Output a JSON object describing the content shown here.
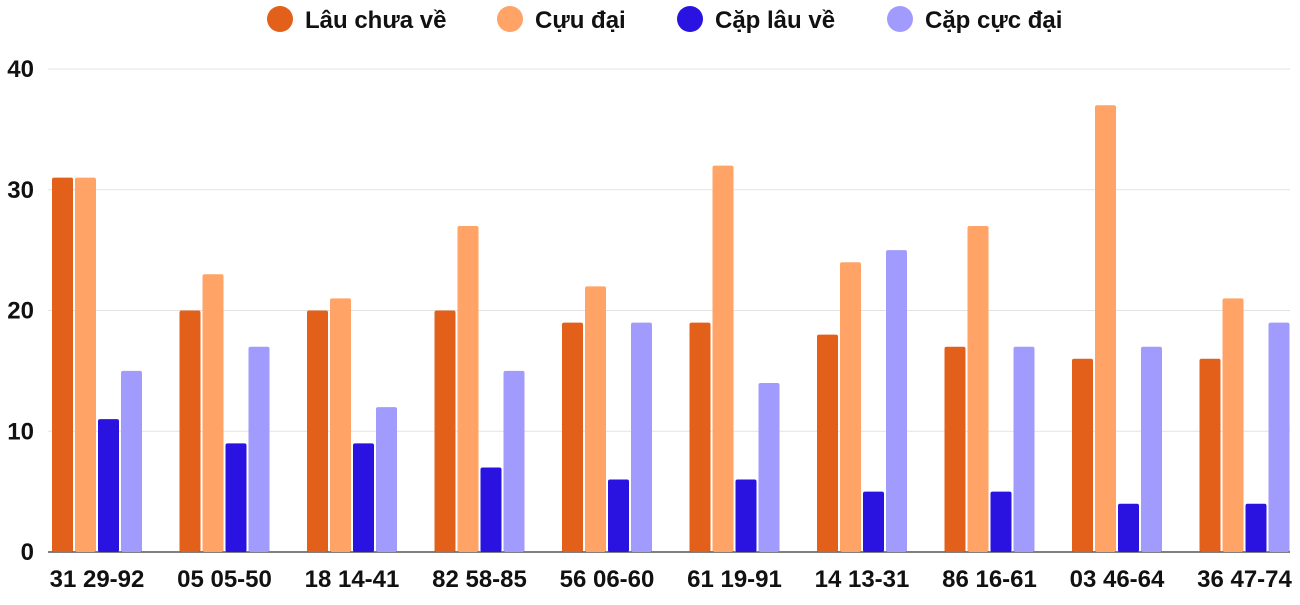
{
  "chart_data": {
    "type": "bar",
    "title": "",
    "xlabel": "",
    "ylabel": "",
    "ylim": [
      0,
      40
    ],
    "yticks": [
      0,
      10,
      20,
      30,
      40
    ],
    "grid": true,
    "legend_position": "top",
    "categories": [
      "31 29-92",
      "05 05-50",
      "18 14-41",
      "82 58-85",
      "56 06-60",
      "61 19-91",
      "14 13-31",
      "86 16-61",
      "03 46-64",
      "36 47-74"
    ],
    "series": [
      {
        "name": "Lâu chưa về",
        "color": "#E2601A",
        "values": [
          31,
          20,
          20,
          20,
          19,
          19,
          18,
          17,
          16,
          16
        ]
      },
      {
        "name": "Cựu đại",
        "color": "#FFA366",
        "values": [
          31,
          23,
          21,
          27,
          22,
          32,
          24,
          27,
          37,
          21
        ]
      },
      {
        "name": "Cặp lâu về",
        "color": "#2A13E0",
        "values": [
          11,
          9,
          9,
          7,
          6,
          6,
          5,
          5,
          4,
          4
        ]
      },
      {
        "name": "Cặp cực đại",
        "color": "#A29BFE",
        "values": [
          15,
          17,
          12,
          15,
          19,
          14,
          25,
          17,
          17,
          19
        ]
      }
    ]
  }
}
